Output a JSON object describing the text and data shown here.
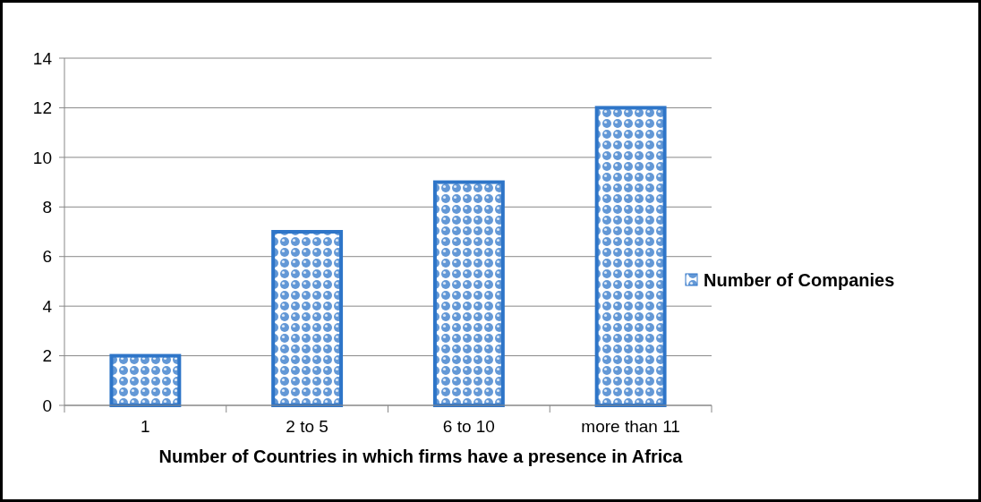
{
  "chart_data": {
    "type": "bar",
    "xlabel": "Number of Countries in which firms have a presence in Africa",
    "categories": [
      "1",
      "2 to 5",
      "6 to 10",
      "more than 11"
    ],
    "series": [
      {
        "name": "Number of Companies",
        "color": "#2e75c8",
        "values": [
          2,
          7,
          9,
          12
        ]
      }
    ],
    "ylim": [
      0,
      14
    ],
    "yticks": [
      0,
      2,
      4,
      6,
      8,
      10,
      12,
      14
    ],
    "grid": "y",
    "legend": "right"
  }
}
